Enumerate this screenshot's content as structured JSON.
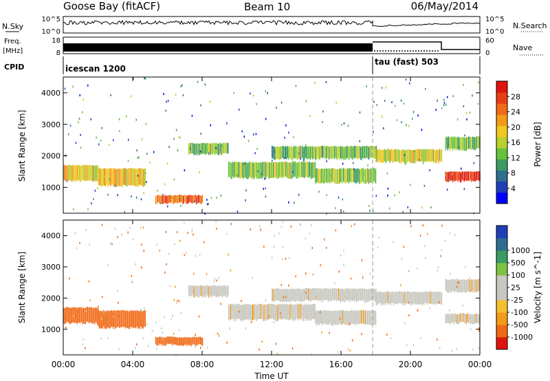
{
  "header": {
    "station": "Goose Bay (fitACF)",
    "beam": "Beam 10",
    "date": "06/May/2014"
  },
  "top_panels": {
    "nsky_label": "N.Sky",
    "nsky_ticks": [
      "10^5",
      "10^0"
    ],
    "nsearch_label": "N.Search",
    "nsearch_ticks": [
      "10^5",
      "10^0"
    ],
    "freq_label_1": "Freq.",
    "freq_label_2": "[MHz]",
    "freq_ticks": [
      "18",
      "8"
    ],
    "nave_label": "Nave",
    "nave_ticks": [
      "60",
      "0"
    ],
    "cpid_label": "CPID",
    "cpid_segments": [
      {
        "name": "icescan 1200",
        "start_hour": 0.0,
        "end_hour": 18.0
      },
      {
        "name": "tau (fast) 503",
        "start_hour": 18.0,
        "end_hour": 24.0
      }
    ]
  },
  "x_axis": {
    "label": "Time UT",
    "ticks": [
      "00:00",
      "04:00",
      "08:00",
      "12:00",
      "16:00",
      "20:00",
      "00:00"
    ],
    "tick_hours": [
      0,
      4,
      8,
      12,
      16,
      20,
      24
    ],
    "range_hours": [
      0,
      24
    ]
  },
  "colors": {
    "power_scale": [
      "#0000ff",
      "#1f3fb8",
      "#2e6e8e",
      "#3a9c63",
      "#66c23a",
      "#b8d02c",
      "#f0c820",
      "#f39a1a",
      "#f06a16",
      "#e83c12",
      "#e0140e"
    ],
    "velocity_scale": [
      "#e0140e",
      "#f06a16",
      "#f39a1a",
      "#f5c02e",
      "#c8c8c0",
      "#c8c8c0",
      "#7dc243",
      "#3a9c63",
      "#2e6e8e",
      "#1f3fb8"
    ],
    "ground_scatter": "#c8c8c0"
  },
  "chart_data": [
    {
      "type": "heatmap",
      "panel": "power",
      "ylabel": "Slant Range [km]",
      "ylim": [
        180,
        4500
      ],
      "yticks": [
        "1000",
        "2000",
        "3000",
        "4000"
      ],
      "ytick_values": [
        1000,
        2000,
        3000,
        4000
      ],
      "colorbar_label": "Power [dB]",
      "colorbar_ticks": [
        "4",
        "8",
        "12",
        "16",
        "20",
        "24",
        "28"
      ],
      "colorbar_values": [
        4,
        8,
        12,
        16,
        20,
        24,
        28
      ],
      "colorbar_range": [
        0,
        32
      ],
      "echo_bands": [
        {
          "t0": 0.0,
          "t1": 2.0,
          "r0": 1200,
          "r1": 1700,
          "level": 0.6
        },
        {
          "t0": 2.0,
          "t1": 4.7,
          "r0": 1050,
          "r1": 1600,
          "level": 0.6
        },
        {
          "t0": 5.3,
          "t1": 8.0,
          "r0": 500,
          "r1": 750,
          "level": 0.8
        },
        {
          "t0": 7.2,
          "t1": 9.5,
          "r0": 2050,
          "r1": 2400,
          "level": 0.4
        },
        {
          "t0": 9.5,
          "t1": 14.5,
          "r0": 1300,
          "r1": 1800,
          "level": 0.45
        },
        {
          "t0": 12.0,
          "t1": 18.0,
          "r0": 1900,
          "r1": 2300,
          "level": 0.4
        },
        {
          "t0": 14.5,
          "t1": 18.0,
          "r0": 1150,
          "r1": 1600,
          "level": 0.45
        },
        {
          "t0": 18.0,
          "t1": 21.8,
          "r0": 1800,
          "r1": 2200,
          "level": 0.55
        },
        {
          "t0": 22.0,
          "t1": 24.0,
          "r0": 1200,
          "r1": 1500,
          "level": 0.95
        },
        {
          "t0": 22.0,
          "t1": 24.0,
          "r0": 2200,
          "r1": 2600,
          "level": 0.4
        }
      ]
    },
    {
      "type": "heatmap",
      "panel": "velocity",
      "ylabel": "Slant Range [km]",
      "ylim": [
        180,
        4500
      ],
      "yticks": [
        "1000",
        "2000",
        "3000",
        "4000"
      ],
      "ytick_values": [
        1000,
        2000,
        3000,
        4000
      ],
      "colorbar_label": "Velocity [m s^-1]",
      "colorbar_ticks": [
        "-1000",
        "-500",
        "-100",
        "-25",
        "25",
        "100",
        "500",
        "1000"
      ],
      "colorbar_values": [
        -1000,
        -500,
        -100,
        -25,
        25,
        100,
        500,
        1000
      ],
      "echo_bands": [
        {
          "t0": 0.0,
          "t1": 2.0,
          "r0": 1200,
          "r1": 1700,
          "velocity": -300
        },
        {
          "t0": 2.0,
          "t1": 4.7,
          "r0": 1050,
          "r1": 1600,
          "velocity": -150
        },
        {
          "t0": 5.3,
          "t1": 8.0,
          "r0": 500,
          "r1": 750,
          "velocity": -400
        },
        {
          "t0": 7.2,
          "t1": 9.5,
          "r0": 2050,
          "r1": 2400,
          "velocity": 0
        },
        {
          "t0": 9.5,
          "t1": 14.5,
          "r0": 1300,
          "r1": 1800,
          "velocity": 0
        },
        {
          "t0": 12.0,
          "t1": 18.0,
          "r0": 1900,
          "r1": 2300,
          "velocity": 0
        },
        {
          "t0": 14.5,
          "t1": 18.0,
          "r0": 1150,
          "r1": 1600,
          "velocity": 0
        },
        {
          "t0": 18.0,
          "t1": 21.8,
          "r0": 1800,
          "r1": 2200,
          "velocity": 0
        },
        {
          "t0": 22.0,
          "t1": 24.0,
          "r0": 1200,
          "r1": 1500,
          "velocity": 0
        },
        {
          "t0": 22.0,
          "t1": 24.0,
          "r0": 2200,
          "r1": 2600,
          "velocity": 0
        }
      ]
    }
  ]
}
